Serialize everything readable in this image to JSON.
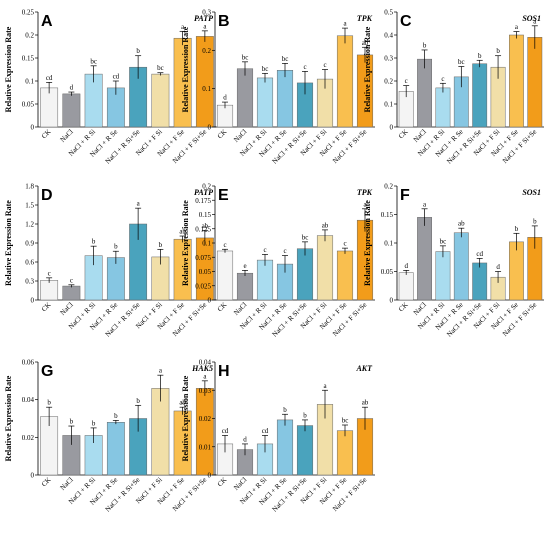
{
  "categories": [
    "CK",
    "NaCl",
    "NaCl + R Si",
    "NaCl + R Se",
    "NaCl + R Si+Se",
    "NaCl + F Si",
    "NaCl + F Se",
    "NaCl + F Si+Se"
  ],
  "bar_colors": [
    "#f4f4f4",
    "#999aa0",
    "#a9dcef",
    "#86c6e2",
    "#4aa3bd",
    "#f1dfa8",
    "#f9bf4f",
    "#f29c1a"
  ],
  "chart_data": [
    {
      "type": "bar",
      "panel": "A",
      "gene": "PATP",
      "ylabel": "Relative Expression Rate",
      "ylim": [
        0,
        0.25
      ],
      "yticks": [
        "0",
        "0.05",
        "0.1",
        "0.15",
        "0.2",
        "0.25"
      ],
      "values": [
        0.085,
        0.072,
        0.115,
        0.085,
        0.13,
        0.115,
        0.193,
        0.197
      ],
      "errors": [
        0.012,
        0.004,
        0.018,
        0.015,
        0.025,
        0.003,
        0.015,
        0.012
      ],
      "letters": [
        "cd",
        "d",
        "bc",
        "cd",
        "b",
        "bc",
        "a",
        "a"
      ]
    },
    {
      "type": "bar",
      "panel": "B",
      "gene": "TPK",
      "ylabel": "Relative Expression Rate",
      "ylim": [
        0,
        0.3
      ],
      "yticks": [
        "0",
        "0.1",
        "0.2",
        "0.3"
      ],
      "values": [
        0.057,
        0.152,
        0.128,
        0.148,
        0.115,
        0.125,
        0.238,
        0.188
      ],
      "errors": [
        0.008,
        0.018,
        0.012,
        0.018,
        0.03,
        0.025,
        0.02,
        0.02
      ],
      "letters": [
        "d",
        "bc",
        "bc",
        "bc",
        "c",
        "c",
        "a",
        "ab"
      ]
    },
    {
      "type": "bar",
      "panel": "C",
      "gene": "SOS1",
      "ylabel": "Relative Expression Rate",
      "ylim": [
        0,
        0.5
      ],
      "yticks": [
        "0",
        "0.1",
        "0.2",
        "0.3",
        "0.4",
        "0.5"
      ],
      "values": [
        0.155,
        0.295,
        0.17,
        0.218,
        0.275,
        0.26,
        0.4,
        0.39
      ],
      "errors": [
        0.025,
        0.04,
        0.02,
        0.045,
        0.015,
        0.05,
        0.015,
        0.05
      ],
      "letters": [
        "c",
        "b",
        "c",
        "bc",
        "b",
        "b",
        "a",
        "a"
      ]
    },
    {
      "type": "bar",
      "panel": "D",
      "gene": "PATP",
      "ylabel": "Relative Expression Rate",
      "ylim": [
        0,
        1.8
      ],
      "yticks": [
        "0",
        "0.3",
        "0.6",
        "0.9",
        "1.2",
        "1.5",
        "1.8"
      ],
      "values": [
        0.31,
        0.22,
        0.7,
        0.67,
        1.2,
        0.68,
        0.96,
        0.98
      ],
      "errors": [
        0.04,
        0.02,
        0.15,
        0.1,
        0.25,
        0.12,
        0.05,
        0.12
      ],
      "letters": [
        "c",
        "c",
        "b",
        "b",
        "a",
        "b",
        "ab",
        "ab"
      ]
    },
    {
      "type": "bar",
      "panel": "E",
      "gene": "TPK",
      "ylabel": "Relative Expression Rate",
      "ylim": [
        0,
        0.2
      ],
      "yticks": [
        "0",
        "0.025",
        "0.05",
        "0.075",
        "0.1",
        "0.125",
        "0.15",
        "0.175",
        "0.2"
      ],
      "values": [
        0.086,
        0.047,
        0.07,
        0.063,
        0.09,
        0.113,
        0.086,
        0.14
      ],
      "errors": [
        0.003,
        0.005,
        0.01,
        0.015,
        0.012,
        0.01,
        0.005,
        0.02
      ],
      "letters": [
        "c",
        "e",
        "c",
        "c",
        "bc",
        "ab",
        "c",
        "a"
      ]
    },
    {
      "type": "bar",
      "panel": "F",
      "gene": "SOS1",
      "ylabel": "Relative Expression Rate",
      "ylim": [
        0,
        0.2
      ],
      "yticks": [
        "0",
        "0.05",
        "0.1",
        "0.15",
        "0.2"
      ],
      "values": [
        0.048,
        0.145,
        0.085,
        0.118,
        0.065,
        0.04,
        0.102,
        0.11
      ],
      "errors": [
        0.004,
        0.015,
        0.01,
        0.008,
        0.008,
        0.01,
        0.015,
        0.02
      ],
      "letters": [
        "d",
        "a",
        "bc",
        "ab",
        "cd",
        "d",
        "b",
        "b"
      ]
    },
    {
      "type": "bar",
      "panel": "G",
      "gene": "HAK5",
      "ylabel": "Relative Expression Rate",
      "ylim": [
        0,
        0.06
      ],
      "yticks": [
        "0",
        "0.02",
        "0.04",
        "0.06"
      ],
      "values": [
        0.031,
        0.021,
        0.021,
        0.028,
        0.03,
        0.046,
        0.034,
        0.046
      ],
      "errors": [
        0.005,
        0.005,
        0.004,
        0.001,
        0.007,
        0.007,
        0.002,
        0.004
      ],
      "letters": [
        "b",
        "b",
        "b",
        "b",
        "b",
        "a",
        "ab",
        "a"
      ]
    },
    {
      "type": "bar",
      "panel": "H",
      "gene": "AKT",
      "ylabel": "Relative Expression Rate",
      "ylim": [
        0,
        0.04
      ],
      "yticks": [
        "0",
        "0.01",
        "0.02",
        "0.03",
        "0.04"
      ],
      "values": [
        0.011,
        0.009,
        0.011,
        0.0195,
        0.0175,
        0.025,
        0.0157,
        0.02
      ],
      "errors": [
        0.003,
        0.002,
        0.003,
        0.002,
        0.002,
        0.005,
        0.002,
        0.004
      ],
      "letters": [
        "cd",
        "d",
        "cd",
        "b",
        "b",
        "a",
        "bc",
        "ab"
      ]
    }
  ]
}
